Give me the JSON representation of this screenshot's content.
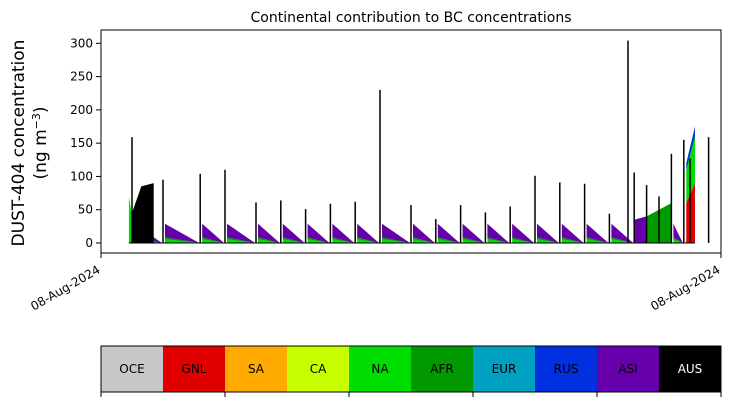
{
  "chart_data": {
    "type": "area",
    "title": "Continental contribution to BC concentrations",
    "ylabel_line1": "DUST-404 concentration",
    "ylabel_line2_prefix": "(ng m",
    "ylabel_line2_exp": "−3",
    "ylabel_line2_suffix": ")",
    "xlabel": "",
    "x_tick_labels": [
      "08-Aug-2024",
      "08-Aug-2024"
    ],
    "ylim": [
      -15,
      320
    ],
    "y_ticks": [
      0,
      50,
      100,
      150,
      200,
      250,
      300
    ],
    "stacked": true,
    "categories_order": [
      "OCE",
      "GNL",
      "SA",
      "CA",
      "NA",
      "AFR",
      "EUR",
      "RUS",
      "ASI",
      "AUS"
    ],
    "colors": {
      "OCE": "#c8c8c8",
      "GNL": "#e00000",
      "SA": "#ffaa00",
      "CA": "#c8ff00",
      "NA": "#00dd00",
      "AFR": "#009900",
      "EUR": "#00a0c0",
      "RUS": "#0030e0",
      "ASI": "#6600aa",
      "AUS": "#000000"
    },
    "legend": [
      {
        "label": "OCE",
        "color": "#c8c8c8",
        "text_color": "#000000"
      },
      {
        "label": "GNL",
        "color": "#e00000",
        "text_color": "#000000"
      },
      {
        "label": "SA",
        "color": "#ffaa00",
        "text_color": "#000000"
      },
      {
        "label": "CA",
        "color": "#c8ff00",
        "text_color": "#000000"
      },
      {
        "label": "NA",
        "color": "#00dd00",
        "text_color": "#000000"
      },
      {
        "label": "AFR",
        "color": "#009900",
        "text_color": "#000000"
      },
      {
        "label": "EUR",
        "color": "#00a0c0",
        "text_color": "#000000"
      },
      {
        "label": "RUS",
        "color": "#0030e0",
        "text_color": "#000000"
      },
      {
        "label": "ASI",
        "color": "#6600aa",
        "text_color": "#000000"
      },
      {
        "label": "AUS",
        "color": "#000000",
        "text_color": "#ffffff"
      }
    ],
    "spikes": [
      {
        "x": 0.05,
        "total": 159
      },
      {
        "x": 0.1,
        "total": 95
      },
      {
        "x": 0.16,
        "total": 104
      },
      {
        "x": 0.2,
        "total": 110
      },
      {
        "x": 0.25,
        "total": 61
      },
      {
        "x": 0.29,
        "total": 64
      },
      {
        "x": 0.33,
        "total": 51
      },
      {
        "x": 0.37,
        "total": 59
      },
      {
        "x": 0.41,
        "total": 62
      },
      {
        "x": 0.45,
        "total": 230
      },
      {
        "x": 0.5,
        "total": 57
      },
      {
        "x": 0.54,
        "total": 36
      },
      {
        "x": 0.58,
        "total": 57
      },
      {
        "x": 0.62,
        "total": 46
      },
      {
        "x": 0.66,
        "total": 55
      },
      {
        "x": 0.7,
        "total": 101
      },
      {
        "x": 0.74,
        "total": 91
      },
      {
        "x": 0.78,
        "total": 89
      },
      {
        "x": 0.82,
        "total": 44
      },
      {
        "x": 0.86,
        "total": 106
      },
      {
        "x": 0.9,
        "total": 70
      },
      {
        "x": 0.94,
        "total": 155
      },
      {
        "x": 0.98,
        "total": 159
      },
      {
        "x": 0.85,
        "total": 304
      },
      {
        "x": 0.88,
        "total": 87
      },
      {
        "x": 0.92,
        "total": 134
      },
      {
        "x": 0.95,
        "total": 127
      }
    ]
  }
}
